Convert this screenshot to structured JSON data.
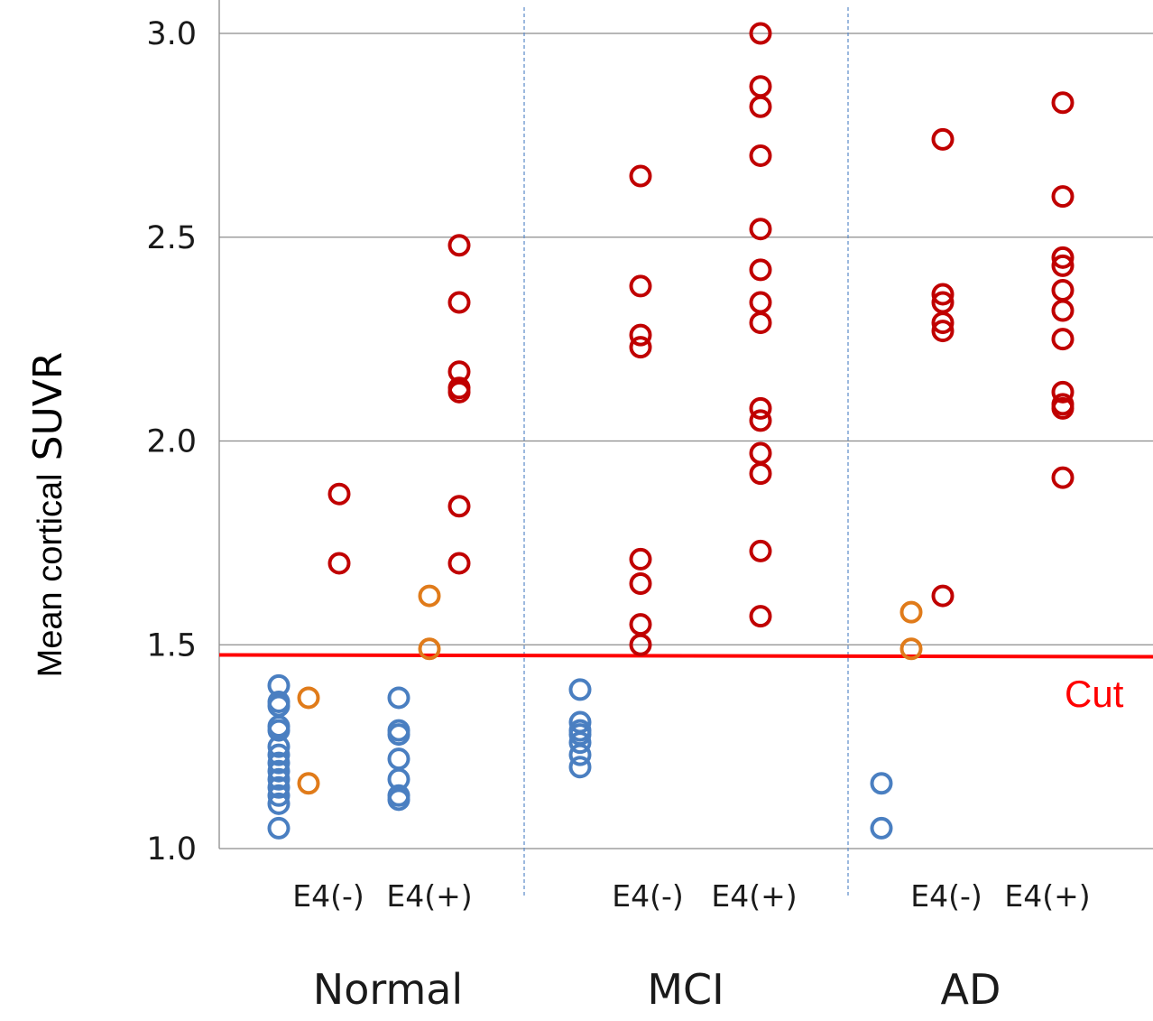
{
  "chart_data": {
    "type": "scatter",
    "title": "",
    "ylabel_prefix": "Mean cortical",
    "ylabel_main": "SUVR",
    "xlabel": "",
    "ylim": [
      1.0,
      3.0
    ],
    "yticks": [
      "1.0",
      "1.5",
      "2.0",
      "2.5",
      "3.0"
    ],
    "grid": "horizontal",
    "groups": [
      {
        "name": "Normal",
        "subgroups": [
          "E4(-)",
          "E4(+)"
        ],
        "points": {
          "E4(-)": {
            "blue": [
              1.4,
              1.36,
              1.35,
              1.3,
              1.29,
              1.25,
              1.23,
              1.21,
              1.19,
              1.17,
              1.15,
              1.13,
              1.11,
              1.05
            ],
            "orange": [
              1.37,
              1.16
            ],
            "red": [
              1.87,
              1.7
            ]
          },
          "E4(+)": {
            "blue": [
              1.37,
              1.29,
              1.28,
              1.22,
              1.17,
              1.13,
              1.12
            ],
            "orange": [
              1.62,
              1.49
            ],
            "red": [
              2.48,
              2.34,
              2.17,
              2.13,
              2.12,
              1.84,
              1.7
            ]
          }
        }
      },
      {
        "name": "MCI",
        "subgroups": [
          "E4(-)",
          "E4(+)"
        ],
        "points": {
          "E4(-)": {
            "blue": [
              1.39,
              1.31,
              1.29,
              1.28,
              1.26,
              1.23,
              1.2
            ],
            "orange": [],
            "red": [
              2.65,
              2.38,
              2.26,
              2.23,
              1.71,
              1.65,
              1.55,
              1.5
            ]
          },
          "E4(+)": {
            "blue": [],
            "orange": [],
            "red": [
              3.0,
              2.87,
              2.82,
              2.7,
              2.52,
              2.42,
              2.34,
              2.29,
              2.08,
              2.05,
              1.97,
              1.92,
              1.73,
              1.57
            ]
          }
        }
      },
      {
        "name": "AD",
        "subgroups": [
          "E4(-)",
          "E4(+)"
        ],
        "points": {
          "E4(-)": {
            "blue": [
              1.16,
              1.05
            ],
            "orange": [
              1.58,
              1.49
            ],
            "red": [
              2.74,
              2.36,
              2.34,
              2.29,
              2.27,
              1.62
            ]
          },
          "E4(+)": {
            "blue": [],
            "orange": [],
            "red": [
              2.83,
              2.6,
              2.45,
              2.43,
              2.37,
              2.32,
              2.25,
              2.12,
              2.09,
              2.08,
              1.91
            ]
          }
        }
      }
    ],
    "cutoff": {
      "value": 1.475,
      "label": "Cut"
    },
    "colors": {
      "blue": "#4a7fc1",
      "orange": "#e07b1a",
      "red": "#c00000",
      "cutoff_line": "#ff0000",
      "grid": "#8c8c8c",
      "divider": "#5b8ac9"
    }
  }
}
